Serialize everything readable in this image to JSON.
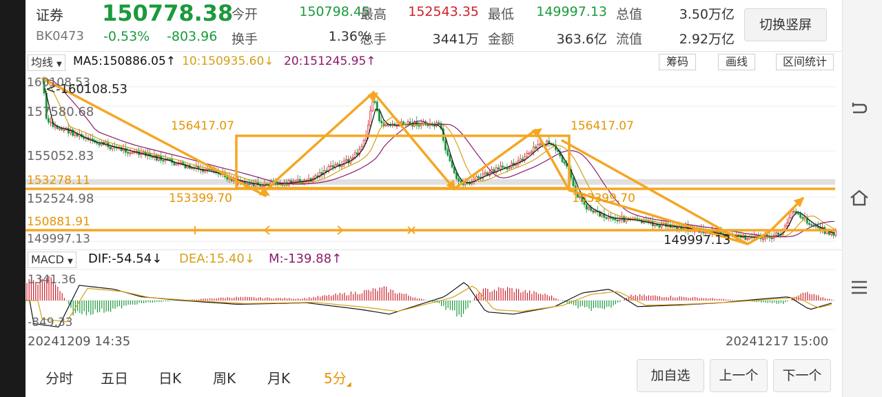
{
  "header": {
    "name": "证券",
    "code": "BK0473",
    "price": "150778.38",
    "change_pct": "-0.53%",
    "change_val": "-803.96",
    "stats_row1": [
      {
        "label": "今开",
        "value": "150798.45",
        "color": "#1b9a3c"
      },
      {
        "label": "最高",
        "value": "152543.35",
        "color": "#d0202a"
      },
      {
        "label": "最低",
        "value": "149997.13",
        "color": "#1b9a3c"
      },
      {
        "label": "总值",
        "value": "3.50万亿",
        "color": "#333333"
      }
    ],
    "stats_row2": [
      {
        "label": "换手",
        "value": "1.36%",
        "color": "#333333"
      },
      {
        "label": "总手",
        "value": "3441万",
        "color": "#333333"
      },
      {
        "label": "金额",
        "value": "363.6亿",
        "color": "#333333"
      },
      {
        "label": "流值",
        "value": "2.92万亿",
        "color": "#333333"
      }
    ],
    "switch_button": "切换竖屏"
  },
  "indicator_bar": {
    "selector": "均线",
    "ma5": "MA5:150886.05↑",
    "ma10": "10:150935.60↓",
    "ma20": "20:151245.95↑",
    "tools": [
      "筹码",
      "画线",
      "区间统计"
    ]
  },
  "main_chart": {
    "price_labels": [
      "160108.53",
      "157580.68",
      "155052.83",
      "153278.11",
      "152524.98",
      "150881.91",
      "149997.13"
    ],
    "high_marker": "<-160108.53",
    "low_marker": "149997.13",
    "box_top_label_left": "156417.07",
    "box_top_label_right": "156417.07",
    "box_bottom_label_left": "153399.70",
    "box_bottom_label_right": "153399.70"
  },
  "macd_bar": {
    "selector": "MACD",
    "dif": "DIF:-54.54↓",
    "dea": "DEA:15.40↓",
    "m": "M:-139.88↑",
    "axis_top": "1341.36",
    "axis_bottom": "-849.33"
  },
  "time_axis": {
    "start": "20241209 14:35",
    "end": "20241217 15:00"
  },
  "period_tabs": [
    "分时",
    "五日",
    "日K",
    "周K",
    "月K",
    "5分"
  ],
  "active_period": "5分",
  "bottom_buttons": [
    "加自选",
    "上一个",
    "下一个"
  ],
  "colors": {
    "up": "#d0202a",
    "down": "#1b9a3c",
    "drawing": "#f5a623",
    "ma5": "#111111",
    "ma10": "#d4a017",
    "ma20": "#8b1a6b"
  },
  "side_nav_icons": [
    "back-icon",
    "home-icon",
    "menu-icon"
  ]
}
